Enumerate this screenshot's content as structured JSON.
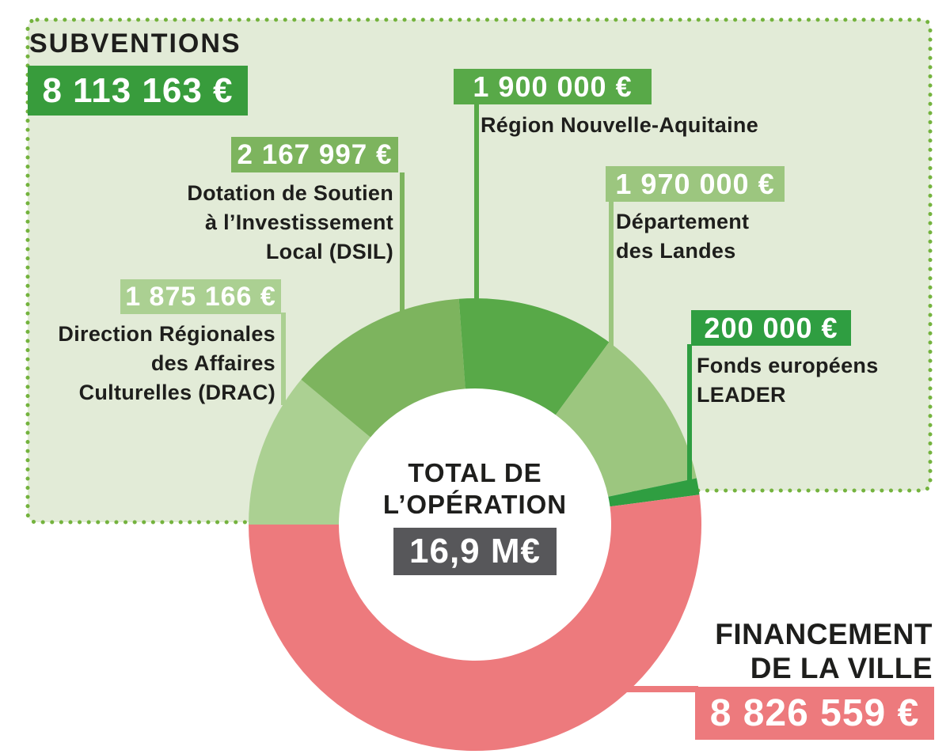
{
  "header": {
    "title": "SUBVENTIONS",
    "total_display": "8 113 163 €"
  },
  "center": {
    "line1": "TOTAL DE",
    "line2": "L’OPÉRATION",
    "total_display": "16,9 M€"
  },
  "city_funding": {
    "line1": "FINANCEMENT",
    "line2": "DE LA VILLE",
    "display": "8 826 559 €"
  },
  "callouts": [
    {
      "id": "dsil",
      "display": "2 167 997 €",
      "lines": [
        "Dotation de Soutien",
        "à l’Investissement",
        "Local (DSIL)"
      ]
    },
    {
      "id": "region",
      "display": "1 900 000 €",
      "lines": [
        "Région Nouvelle-Aquitaine"
      ]
    },
    {
      "id": "landes",
      "display": "1 970 000 €",
      "lines": [
        "Département",
        "des Landes"
      ]
    },
    {
      "id": "drac",
      "display": "1 875 166 €",
      "lines": [
        "Direction Régionales",
        "des Affaires",
        "Culturelles (DRAC)"
      ]
    },
    {
      "id": "leader",
      "display": "200 000 €",
      "lines": [
        "Fonds européens",
        "LEADER"
      ]
    }
  ],
  "colors": {
    "panel_bg": "#e2ebd7",
    "panel_dots": "#74b33e",
    "text": "#1e1e1c",
    "subventions_badge": "#389c3c",
    "center_badge": "#57575a"
  },
  "chart_data": {
    "type": "pie",
    "donut": true,
    "title": "SUBVENTIONS / FINANCEMENT DE LA VILLE",
    "center_label": "TOTAL DE L’OPÉRATION 16,9 M€",
    "total_value_eur": 16939722,
    "subventions_total": {
      "value": 8113163,
      "display": "8 113 163 €"
    },
    "start_angle_deg": 180,
    "direction": "clockwise",
    "legend_position": "callouts",
    "segments": [
      {
        "id": "drac",
        "label": "Direction Régionales des Affaires Culturelles (DRAC)",
        "value": 1875166,
        "display": "1 875 166 €",
        "color": "#abd092"
      },
      {
        "id": "dsil",
        "label": "Dotation de Soutien à l’Investissement Local (DSIL)",
        "value": 2167997,
        "display": "2 167 997 €",
        "color": "#7db45e"
      },
      {
        "id": "region",
        "label": "Région Nouvelle-Aquitaine",
        "value": 1900000,
        "display": "1 900 000 €",
        "color": "#58a948"
      },
      {
        "id": "landes",
        "label": "Département des Landes",
        "value": 1970000,
        "display": "1 970 000 €",
        "color": "#9cc67f"
      },
      {
        "id": "leader",
        "label": "Fonds européens LEADER",
        "value": 200000,
        "display": "200 000 €",
        "color": "#2f9e41"
      },
      {
        "id": "ville",
        "label": "Financement de la Ville",
        "value": 8826559,
        "display": "8 826 559 €",
        "color": "#ed7a7d"
      }
    ]
  }
}
